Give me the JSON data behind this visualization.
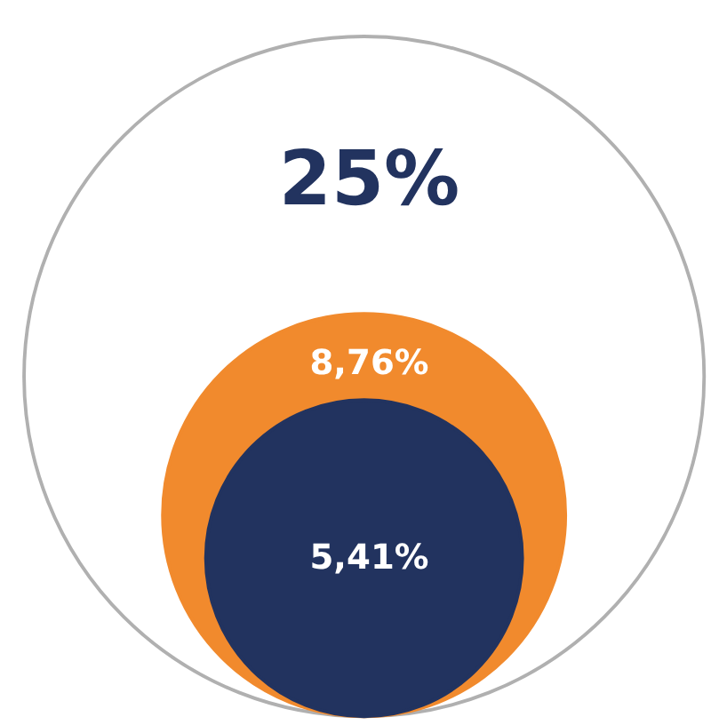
{
  "chart_data": {
    "type": "other",
    "categories": [
      null,
      null,
      null
    ],
    "values": [
      25,
      8.76,
      5.41
    ],
    "colors": [
      "#ffffff",
      "#f18a2d",
      "#22335f"
    ],
    "value_labels": [
      "25%",
      "8,76%",
      "5,41%"
    ]
  }
}
